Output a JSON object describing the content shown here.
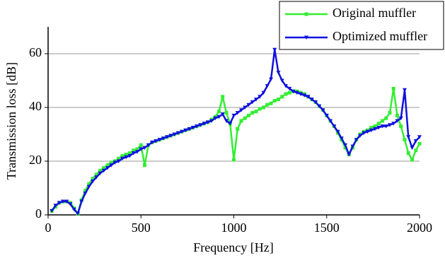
{
  "chart_data": {
    "type": "line",
    "x_label": "Frequency [Hz]",
    "y_label": "Transmission loss [dB]",
    "x": [
      20,
      40,
      60,
      80,
      100,
      120,
      140,
      160,
      180,
      200,
      220,
      240,
      260,
      280,
      300,
      320,
      340,
      360,
      380,
      400,
      420,
      440,
      460,
      480,
      500,
      520,
      540,
      560,
      580,
      600,
      620,
      640,
      660,
      680,
      700,
      720,
      740,
      760,
      780,
      800,
      820,
      840,
      860,
      880,
      900,
      920,
      940,
      960,
      980,
      1000,
      1020,
      1040,
      1060,
      1080,
      1100,
      1120,
      1140,
      1160,
      1180,
      1200,
      1220,
      1240,
      1260,
      1280,
      1300,
      1320,
      1340,
      1360,
      1380,
      1400,
      1420,
      1440,
      1460,
      1480,
      1500,
      1520,
      1540,
      1560,
      1580,
      1600,
      1620,
      1640,
      1660,
      1680,
      1700,
      1720,
      1740,
      1760,
      1780,
      1800,
      1820,
      1840,
      1860,
      1880,
      1900,
      1920,
      1940,
      1960,
      1980,
      2000
    ],
    "series": [
      {
        "name": "Original muffler",
        "color": "#33ee33",
        "marker": "square",
        "values": [
          1.5,
          3,
          4.5,
          5,
          5,
          4.5,
          2.5,
          0.5,
          5.5,
          9,
          11.5,
          13.5,
          15,
          16.5,
          17.5,
          18.5,
          19.5,
          20,
          21,
          22,
          22.5,
          23,
          24,
          24.5,
          26,
          18.5,
          26,
          27,
          27.5,
          28,
          28.5,
          29,
          29.5,
          30,
          30.5,
          31,
          31.5,
          32,
          32.5,
          33,
          33.5,
          34,
          34.5,
          35.5,
          36.5,
          38.5,
          44,
          38,
          34,
          20.5,
          32,
          35,
          36,
          37,
          38,
          38.5,
          39.5,
          40,
          41,
          41.5,
          42.5,
          43,
          44,
          45,
          45.5,
          46,
          46,
          45.5,
          45,
          44,
          43,
          42,
          40.5,
          39,
          37,
          35,
          33,
          30.5,
          28,
          25,
          22.5,
          25,
          28,
          30,
          31,
          31.5,
          32.5,
          33,
          34,
          35,
          36,
          38,
          47,
          37,
          33,
          28,
          23,
          20.5,
          24,
          26.5
        ]
      },
      {
        "name": "Optimized muffler",
        "color": "#1111dd",
        "marker": "triangle-down",
        "values": [
          1.5,
          3.5,
          4.5,
          5,
          5,
          4,
          2,
          0.5,
          5,
          8,
          10.5,
          12.5,
          14,
          15.5,
          16.5,
          17.5,
          18.5,
          19.5,
          20,
          21,
          21.5,
          22,
          23,
          23.5,
          24.5,
          25,
          26,
          27,
          27.5,
          28,
          28.5,
          29,
          29.5,
          30,
          30.5,
          31,
          31.5,
          32,
          32.5,
          33,
          33.5,
          34,
          34.5,
          35,
          36,
          36.5,
          37.5,
          35,
          34,
          37,
          38,
          39,
          40,
          41,
          42,
          43,
          44,
          45.5,
          48,
          50.5,
          61.5,
          53,
          50,
          48,
          47,
          46,
          45.5,
          45,
          44.5,
          44,
          43,
          42,
          40.5,
          39,
          37,
          35,
          33,
          31,
          28.5,
          26,
          22.5,
          25.5,
          28,
          29.5,
          30.5,
          31,
          31.5,
          32,
          32.5,
          33,
          33,
          33.5,
          34,
          35,
          36,
          46.5,
          29,
          25,
          27.5,
          29
        ]
      }
    ],
    "xlim": [
      0,
      2000
    ],
    "xticks": [
      0,
      500,
      1000,
      1500,
      2000
    ],
    "ylim": [
      0,
      70
    ],
    "yticks": [
      0,
      20,
      40,
      60
    ],
    "grid": true,
    "legend": "top-right"
  }
}
